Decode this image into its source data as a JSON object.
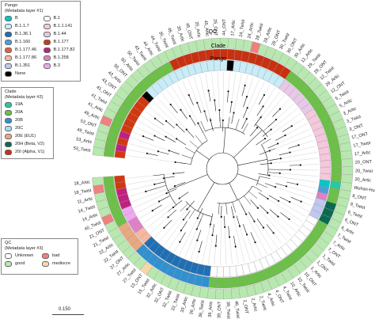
{
  "legends": {
    "pango": {
      "title": "Pango",
      "subtitle": "(Metadata layer #1)",
      "items": [
        {
          "label": "B",
          "color": "#00c8c8"
        },
        {
          "label": "B.1",
          "color": "#ffffff"
        },
        {
          "label": "B.1.1.7",
          "color": "#c8ecf8"
        },
        {
          "label": "B.1.1.141",
          "color": "#f5c8dc"
        },
        {
          "label": "B.1.36.1",
          "color": "#1f6fb4"
        },
        {
          "label": "B.1.44",
          "color": "#e8c8e8"
        },
        {
          "label": "B.1.160",
          "color": "#4e9fd8"
        },
        {
          "label": "B.1.177",
          "color": "#d2380f"
        },
        {
          "label": "B.1.177.46",
          "color": "#e86040"
        },
        {
          "label": "B.1.177.82",
          "color": "#c02080"
        },
        {
          "label": "B.1.177.86",
          "color": "#f6b8a0"
        },
        {
          "label": "B.1.258",
          "color": "#e080c8"
        },
        {
          "label": "B.1.351",
          "color": "#c0c8f0"
        },
        {
          "label": "B.3",
          "color": "#f0a8f0"
        },
        {
          "label": "None",
          "color": "#000000"
        }
      ]
    },
    "clade": {
      "title": "Clade",
      "subtitle": "(Metadata layer #2)",
      "items": [
        {
          "label": "19A",
          "color": "#28c8a0"
        },
        {
          "label": "20A",
          "color": "#6cc048"
        },
        {
          "label": "20B",
          "color": "#3090d0"
        },
        {
          "label": "20C",
          "color": "#a0e0f0"
        },
        {
          "label": "20E (EU1)",
          "color": "#e8a880"
        },
        {
          "label": "20H (Beta, V2)",
          "color": "#0a6a50"
        },
        {
          "label": "20I (Alpha, V1)",
          "color": "#c83010"
        }
      ]
    },
    "qc": {
      "title": "QC",
      "subtitle": "(Metadata layer #3)",
      "items": [
        {
          "label": "Unknown",
          "color": "#ffffff"
        },
        {
          "label": "bad",
          "color": "#f08080"
        },
        {
          "label": "good",
          "color": "#b8e8b0"
        },
        {
          "label": "mediocre",
          "color": "#f5d8a8"
        }
      ]
    }
  },
  "ring_labels": {
    "qc": "QC",
    "clade": "Clade",
    "pango": "Pango"
  },
  "scale": {
    "label": "0.150"
  },
  "leaves": [
    {
      "label": "53_Twist",
      "pango": "B.1.177",
      "clade": "20A",
      "qc": "good"
    },
    {
      "label": "53_Artic",
      "pango": "B.1.177.82",
      "clade": "20A",
      "qc": "good"
    },
    {
      "label": "49_Twist",
      "pango": "B.1.177",
      "clade": "20A",
      "qc": "good"
    },
    {
      "label": "53_ONT",
      "pango": "B.1.177.82",
      "clade": "20A",
      "qc": "good"
    },
    {
      "label": "49_Artic",
      "pango": "B.1.177",
      "clade": "20A",
      "qc": "bad"
    },
    {
      "label": "41_Artic",
      "pango": "B.1.177",
      "clade": "20A",
      "qc": "good"
    },
    {
      "label": "41_Twist",
      "pango": "B.1.177",
      "clade": "20A",
      "qc": "good"
    },
    {
      "label": "41_ONT",
      "pango": "B.1.177",
      "clade": "20A",
      "qc": "good"
    },
    {
      "label": "43_ONT",
      "pango": "B.1.177",
      "clade": "20A",
      "qc": "good"
    },
    {
      "label": "43_Artic",
      "pango": "B.1.177",
      "clade": "20A",
      "qc": "good"
    },
    {
      "label": "50_ONT",
      "pango": "None",
      "clade": "20A",
      "qc": "good"
    },
    {
      "label": "50_Artic",
      "pango": "B.1.1.7",
      "clade": "20A",
      "qc": "good"
    },
    {
      "label": "50_Twist",
      "pango": "B.1.1.7",
      "clade": "20A",
      "qc": "good"
    },
    {
      "label": "43_Twist",
      "pango": "B.1.1.7",
      "clade": "20A",
      "qc": "good"
    },
    {
      "label": "44_Artic",
      "pango": "B.1.1.7",
      "clade": "20A",
      "qc": "good"
    },
    {
      "label": "44_Twist",
      "pango": "B.1.1.7",
      "clade": "20A",
      "qc": "good"
    },
    {
      "label": "35_Twist",
      "pango": "B.1.1.7",
      "clade": "20I (Alpha, V1)",
      "qc": "good"
    },
    {
      "label": "45_Twist",
      "pango": "B.1.1.7",
      "clade": "20I (Alpha, V1)",
      "qc": "good"
    },
    {
      "label": "35_Artic",
      "pango": "B.1.1.7",
      "clade": "20I (Alpha, V1)",
      "qc": "good"
    },
    {
      "label": "45_ONT",
      "pango": "B.1.1.7",
      "clade": "20I (Alpha, V1)",
      "qc": "good"
    },
    {
      "label": "25_Artic",
      "pango": "B.1.1.7",
      "clade": "20I (Alpha, V1)",
      "qc": "good"
    },
    {
      "label": "45_Artic",
      "pango": "B.1.1.7",
      "clade": "20I (Alpha, V1)",
      "qc": "good"
    },
    {
      "label": "25_ONT",
      "pango": "B.1.1.7",
      "clade": "20I (Alpha, V1)",
      "qc": "good"
    },
    {
      "label": "44_ONT",
      "pango": "B.1.1.7",
      "clade": "20I (Alpha, V1)",
      "qc": "good"
    },
    {
      "label": "17_Artic",
      "pango": "None",
      "clade": "20I (Alpha, V1)",
      "qc": "good"
    },
    {
      "label": "24_Twist",
      "pango": "B.1.1.7",
      "clade": "20I (Alpha, V1)",
      "qc": "good"
    },
    {
      "label": "24_Artic",
      "pango": "B.1.1.7",
      "clade": "20I (Alpha, V1)",
      "qc": "good"
    },
    {
      "label": "28_Twist",
      "pango": "B.1.1.7",
      "clade": "20I (Alpha, V1)",
      "qc": "bad"
    },
    {
      "label": "28_Artic",
      "pango": "B.1.1.7",
      "clade": "20I (Alpha, V1)",
      "qc": "good"
    },
    {
      "label": "28_ONT",
      "pango": "B.1.1.7",
      "clade": "20I (Alpha, V1)",
      "qc": "good"
    },
    {
      "label": "30_Twist",
      "pango": "B.1.1.7",
      "clade": "20I (Alpha, V1)",
      "qc": "good"
    },
    {
      "label": "30_ONT",
      "pango": "B.1.1.7",
      "clade": "20I (Alpha, V1)",
      "qc": "good"
    },
    {
      "label": "30_Artic",
      "pango": "B.1.1.7",
      "clade": "20I (Alpha, V1)",
      "qc": "good"
    },
    {
      "label": "12_Artic",
      "pango": "B.1.44",
      "clade": "20A",
      "qc": "good"
    },
    {
      "label": "29_Twist",
      "pango": "B.1.44",
      "clade": "20A",
      "qc": "good"
    },
    {
      "label": "29_ONT",
      "pango": "B.1.44",
      "clade": "20A",
      "qc": "good"
    },
    {
      "label": "12_Twist",
      "pango": "B.1.44",
      "clade": "20A",
      "qc": "good"
    },
    {
      "label": "29_Artic",
      "pango": "B.1.44",
      "clade": "20A",
      "qc": "good"
    },
    {
      "label": "12_ONT",
      "pango": "B.1.44",
      "clade": "20A",
      "qc": "good"
    },
    {
      "label": "5_Twist",
      "pango": "B.1.1.141",
      "clade": "20A",
      "qc": "good"
    },
    {
      "label": "5_Artic",
      "pango": "B.1.1.141",
      "clade": "20A",
      "qc": "good"
    },
    {
      "label": "3_Artic",
      "pango": "B.1.1.141",
      "clade": "20A",
      "qc": "good"
    },
    {
      "label": "3_Twist",
      "pango": "B.1.1.141",
      "clade": "20A",
      "qc": "good"
    },
    {
      "label": "3_ONT",
      "pango": "B.1.1.141",
      "clade": "20A",
      "qc": "good"
    },
    {
      "label": "17_ONT",
      "pango": "B.1.1.141",
      "clade": "20A",
      "qc": "good"
    },
    {
      "label": "17_Twist",
      "pango": "B.1.1.141",
      "clade": "20A",
      "qc": "good"
    },
    {
      "label": "17_Artic",
      "pango": "B.1.1.141",
      "clade": "20A",
      "qc": "good"
    },
    {
      "label": "20_ONT",
      "pango": "B.1.1.141",
      "clade": "20A",
      "qc": "good"
    },
    {
      "label": "20_Twist",
      "pango": "B.1.1.141",
      "clade": "20A",
      "qc": "good"
    },
    {
      "label": "20_Artic",
      "pango": "B.1.1.141",
      "clade": "20A",
      "qc": "good"
    },
    {
      "label": "Wuhan-Hu-1",
      "pango": "B",
      "clade": "19A",
      "qc": "good"
    },
    {
      "label": "8_ONT",
      "pango": "B.1.160",
      "clade": "20A",
      "qc": "good"
    },
    {
      "label": "8_Twist",
      "pango": "B.1.258",
      "clade": "20A",
      "qc": "good"
    },
    {
      "label": "6_Twist",
      "pango": "B.1.351",
      "clade": "20H (Beta, V2)",
      "qc": "good"
    },
    {
      "label": "6_ONT",
      "pango": "B.1.351",
      "clade": "20H (Beta, V2)",
      "qc": "good"
    },
    {
      "label": "6_Artic",
      "pango": "B.1.351",
      "clade": "20H (Beta, V2)",
      "qc": "good"
    },
    {
      "label": "7_Twist",
      "pango": "B.1",
      "clade": "20A",
      "qc": "good"
    },
    {
      "label": "7_Artic",
      "pango": "B.1",
      "clade": "20A",
      "qc": "good"
    },
    {
      "label": "7_ONT",
      "pango": "B.1",
      "clade": "20A",
      "qc": "good"
    },
    {
      "label": "1_Twist",
      "pango": "B.1",
      "clade": "20A",
      "qc": "good"
    },
    {
      "label": "1_ONT",
      "pango": "B.1",
      "clade": "20A",
      "qc": "good"
    },
    {
      "label": "1_Artic",
      "pango": "B.1",
      "clade": "20A",
      "qc": "good"
    },
    {
      "label": "10_ONT",
      "pango": "B.1",
      "clade": "20A",
      "qc": "good"
    },
    {
      "label": "10_Twist",
      "pango": "B.1",
      "clade": "20A",
      "qc": "good"
    },
    {
      "label": "10_Artic",
      "pango": "B.1",
      "clade": "20A",
      "qc": "good"
    },
    {
      "label": "4_Twist",
      "pango": "B.1",
      "clade": "20A",
      "qc": "good"
    },
    {
      "label": "4_ONT",
      "pango": "B.1",
      "clade": "20A",
      "qc": "good"
    },
    {
      "label": "4_Artic",
      "pango": "B.1",
      "clade": "20A",
      "qc": "good"
    },
    {
      "label": "2_Twist",
      "pango": "B.1",
      "clade": "20A",
      "qc": "good"
    },
    {
      "label": "2_Artic",
      "pango": "B.1",
      "clade": "20A",
      "qc": "good"
    },
    {
      "label": "2_ONT",
      "pango": "B.1",
      "clade": "20A",
      "qc": "good"
    },
    {
      "label": "46_Twist",
      "pango": "B.1",
      "clade": "20A",
      "qc": "good"
    },
    {
      "label": "39_Twist",
      "pango": "B.1",
      "clade": "20A",
      "qc": "good"
    },
    {
      "label": "39_ONT",
      "pango": "B.1",
      "clade": "20A",
      "qc": "good"
    },
    {
      "label": "39_Artic",
      "pango": "B.1",
      "clade": "20A",
      "qc": "good"
    },
    {
      "label": "36_Twist",
      "pango": "B.1.36.1",
      "clade": "20B",
      "qc": "good"
    },
    {
      "label": "36_Artic",
      "pango": "B.1.36.1",
      "clade": "20B",
      "qc": "good"
    },
    {
      "label": "33_Artic",
      "pango": "B.1.36.1",
      "clade": "20B",
      "qc": "good"
    },
    {
      "label": "33_Twist",
      "pango": "B.1.36.1",
      "clade": "20B",
      "qc": "good"
    },
    {
      "label": "32_Twist",
      "pango": "B.1.36.1",
      "clade": "20B",
      "qc": "good"
    },
    {
      "label": "32_ONT",
      "pango": "B.1.36.1",
      "clade": "20B",
      "qc": "good"
    },
    {
      "label": "32_Artic",
      "pango": "B.1.36.1",
      "clade": "20B",
      "qc": "good"
    },
    {
      "label": "15_Twist",
      "pango": "B.1.36.1",
      "clade": "20B",
      "qc": "good"
    },
    {
      "label": "15_ONT",
      "pango": "B.1.36.1",
      "clade": "20B",
      "qc": "mediocre"
    },
    {
      "label": "27_Twist",
      "pango": "B.1.36.1",
      "clade": "20B",
      "qc": "good"
    },
    {
      "label": "27_Artic",
      "pango": "B.1.36.1",
      "clade": "20B",
      "qc": "good"
    },
    {
      "label": "27_ONT",
      "pango": "B.1.177.86",
      "clade": "20E (EU1)",
      "qc": "good"
    },
    {
      "label": "22_Twist",
      "pango": "B.1.177.86",
      "clade": "20E (EU1)",
      "qc": "good"
    },
    {
      "label": "22_Artic",
      "pango": "B.1.258",
      "clade": "20E (EU1)",
      "qc": "good"
    },
    {
      "label": "21_Twist",
      "pango": "B.1.258",
      "clade": "20E (EU1)",
      "qc": "good"
    },
    {
      "label": "21_ONT",
      "pango": "B.3",
      "clade": "20A",
      "qc": "good"
    },
    {
      "label": "40_Twist",
      "pango": "B.3",
      "clade": "20A",
      "qc": "bad"
    },
    {
      "label": "14_Artic",
      "pango": "B.1.177.82",
      "clade": "20A",
      "qc": "good"
    },
    {
      "label": "14_Twist",
      "pango": "B.1.177.82",
      "clade": "20A",
      "qc": "good"
    },
    {
      "label": "11_Artic",
      "pango": "B.1.177.82",
      "clade": "20A",
      "qc": "good"
    },
    {
      "label": "18_Twist",
      "pango": "B.1.177",
      "clade": "20A",
      "qc": "bad"
    },
    {
      "label": "18_Artic",
      "pango": "B.1.177",
      "clade": "20A",
      "qc": "good"
    }
  ]
}
